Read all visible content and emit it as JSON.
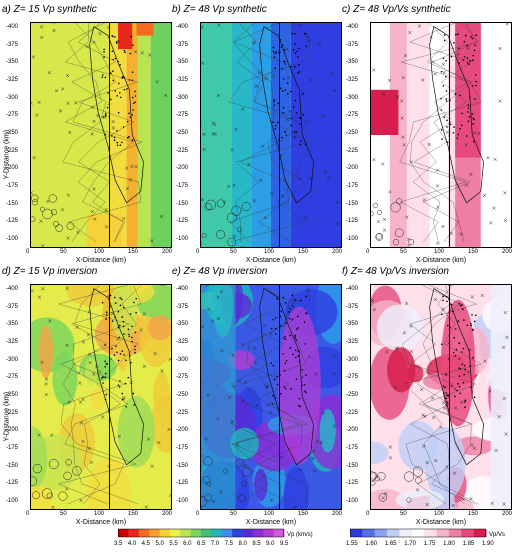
{
  "panels": [
    {
      "id": "a",
      "letter": "a)",
      "title": "Z=  15   Vp   synthetic",
      "cmap": "vp",
      "style": "synthetic-shallow"
    },
    {
      "id": "b",
      "letter": "b)",
      "title": "Z=  48   Vp   synthetic",
      "cmap": "vp",
      "style": "synthetic-deep"
    },
    {
      "id": "c",
      "letter": "c)",
      "title": "Z=  48   Vp/Vs  synthetic",
      "cmap": "vpvs",
      "style": "synthetic-ratio"
    },
    {
      "id": "d",
      "letter": "d)",
      "title": "Z=  15   Vp   inversion",
      "cmap": "vp",
      "style": "inversion-shallow"
    },
    {
      "id": "e",
      "letter": "e)",
      "title": "Z=  48   Vp   inversion",
      "cmap": "vp",
      "style": "inversion-deep"
    },
    {
      "id": "f",
      "letter": "f)",
      "title": "Z=  48   Vp/Vs  inversion",
      "cmap": "vpvs",
      "style": "inversion-ratio"
    }
  ],
  "axes": {
    "ylabel": "Y-Distance (km)",
    "xlabel": "X-Distance (km)",
    "yticks": [
      "-400",
      "-375",
      "-350",
      "-325",
      "-300",
      "-275",
      "-250",
      "-225",
      "-200",
      "-175",
      "-150",
      "-125",
      "-100"
    ],
    "xticks": [
      "0",
      "50",
      "100",
      "150",
      "200"
    ]
  },
  "colorbars": {
    "vp": {
      "label": "Vp (km/s)",
      "ticks": [
        "3.5",
        "4.0",
        "4.5",
        "5.0",
        "5.5",
        "6.0",
        "6.5",
        "7.0",
        "7.5",
        "8.0",
        "8.5",
        "9.0",
        "9.5"
      ],
      "colors": [
        "#cc0000",
        "#e8281a",
        "#f46a1e",
        "#f7a02a",
        "#f7d13a",
        "#e8f04a",
        "#b6e652",
        "#79d45c",
        "#3fc27a",
        "#1eb6b6",
        "#3d8cf0",
        "#2e44e0",
        "#5a2ad8",
        "#8c2cd8",
        "#b43cd4",
        "#d25ad8"
      ]
    },
    "vpvs": {
      "label": "Vp/Vs",
      "ticks": [
        "1.55",
        "1.60",
        "1.65",
        "1.70",
        "1.75",
        "1.80",
        "1.85",
        "1.90"
      ],
      "colors": [
        "#2c3cd8",
        "#5470e8",
        "#8aa2f0",
        "#c0cef6",
        "#eef0fb",
        "#ffffff",
        "#fde0ea",
        "#f7b3cb",
        "#ef7ea5",
        "#e64a7c",
        "#d81e4e"
      ]
    }
  }
}
